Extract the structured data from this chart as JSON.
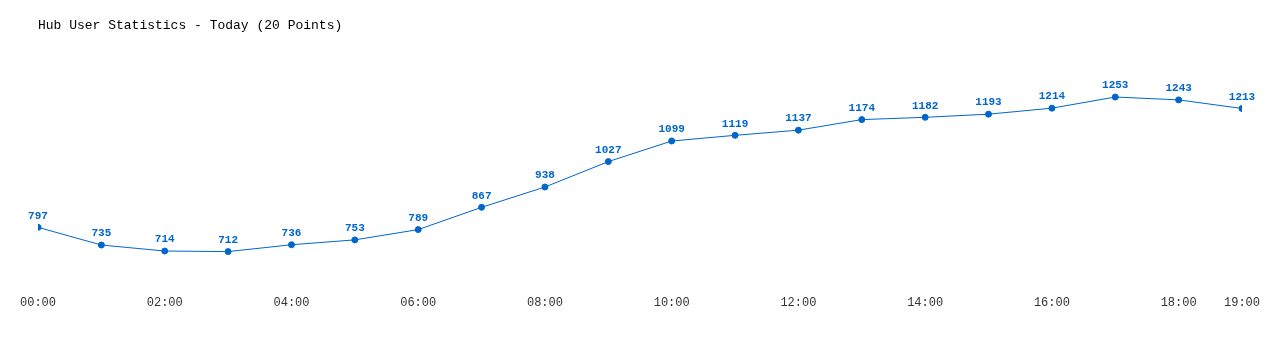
{
  "chart_data": {
    "type": "line",
    "title": "Hub User Statistics - Today (20 Points)",
    "x": [
      0,
      1,
      2,
      3,
      4,
      5,
      6,
      7,
      8,
      9,
      10,
      11,
      12,
      13,
      14,
      15,
      16,
      17,
      18,
      19
    ],
    "series": [
      {
        "color": "#0066cc",
        "values": [
          797,
          735,
          714,
          712,
          736,
          753,
          789,
          867,
          938,
          1027,
          1099,
          1119,
          1137,
          1174,
          1182,
          1193,
          1214,
          1253,
          1243,
          1213
        ]
      }
    ],
    "xlim": [
      0,
      19
    ],
    "xticks": [
      {
        "value": 0,
        "label": "00:00"
      },
      {
        "value": 2,
        "label": "02:00"
      },
      {
        "value": 4,
        "label": "04:00"
      },
      {
        "value": 6,
        "label": "06:00"
      },
      {
        "value": 8,
        "label": "08:00"
      },
      {
        "value": 10,
        "label": "10:00"
      },
      {
        "value": 12,
        "label": "12:00"
      },
      {
        "value": 14,
        "label": "14:00"
      },
      {
        "value": 16,
        "label": "16:00"
      },
      {
        "value": 18,
        "label": "18:00"
      },
      {
        "value": 19,
        "label": "19:00"
      }
    ],
    "data_labels": true,
    "marker": "circle",
    "line_style": "solid",
    "tick_labels": "x"
  }
}
